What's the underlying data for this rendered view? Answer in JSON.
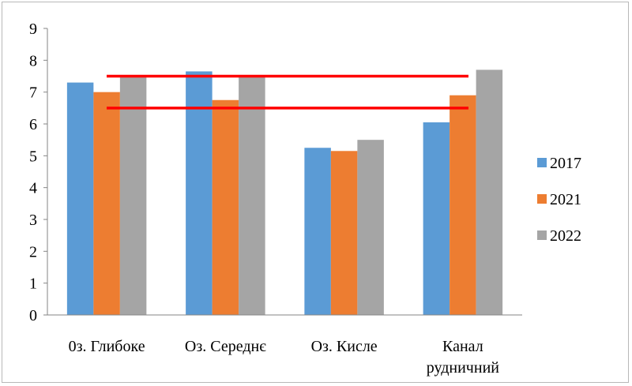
{
  "chart_data": {
    "type": "bar",
    "categories": [
      "0з. Глибоке",
      "Оз. Середнє",
      "Оз. Кисле",
      "Канал рудничний"
    ],
    "series": [
      {
        "name": "2017",
        "values": [
          7.3,
          7.65,
          5.25,
          6.05
        ],
        "color": "#5b9bd5"
      },
      {
        "name": "2021",
        "values": [
          7.0,
          6.75,
          5.15,
          6.9
        ],
        "color": "#ed7d31"
      },
      {
        "name": "2022",
        "values": [
          7.5,
          7.5,
          5.5,
          7.7
        ],
        "color": "#a5a5a5"
      }
    ],
    "reference_lines": [
      {
        "y": 7.5,
        "color": "#ff0000"
      },
      {
        "y": 6.5,
        "color": "#ff0000"
      }
    ],
    "ylim": [
      0,
      9
    ],
    "yticks": [
      "0",
      "1",
      "2",
      "3",
      "4",
      "5",
      "6",
      "7",
      "8",
      "9"
    ],
    "grid": false,
    "legend_position": "right"
  }
}
